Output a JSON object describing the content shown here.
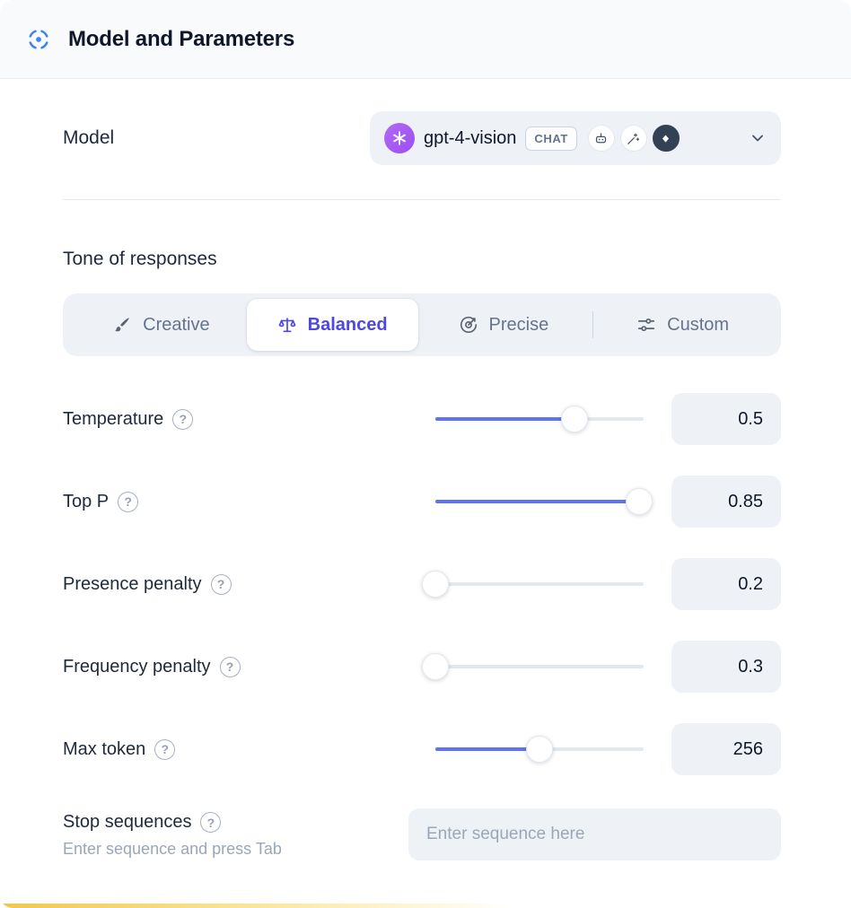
{
  "header": {
    "title": "Model and Parameters",
    "icon": "model-scan-icon"
  },
  "model": {
    "label": "Model",
    "selected_model": "gpt-4-vision",
    "type_badge": "CHAT",
    "capability_icons": [
      "openai-logo",
      "robot-icon",
      "wand-icon",
      "vision-icon"
    ]
  },
  "tone": {
    "heading": "Tone of responses",
    "options": [
      {
        "label": "Creative",
        "icon": "brush-icon",
        "selected": false
      },
      {
        "label": "Balanced",
        "icon": "scale-icon",
        "selected": true
      },
      {
        "label": "Precise",
        "icon": "target-icon",
        "selected": false
      },
      {
        "label": "Custom",
        "icon": "sliders-icon",
        "selected": false
      }
    ]
  },
  "params": [
    {
      "label": "Temperature",
      "value": "0.5",
      "percent": 67
    },
    {
      "label": "Top P",
      "value": "0.85",
      "percent": 98
    },
    {
      "label": "Presence penalty",
      "value": "0.2",
      "percent": 0
    },
    {
      "label": "Frequency penalty",
      "value": "0.3",
      "percent": 0
    },
    {
      "label": "Max token",
      "value": "256",
      "percent": 50
    }
  ],
  "stop": {
    "label": "Stop sequences",
    "hint": "Enter sequence and press Tab",
    "placeholder": "Enter sequence here"
  },
  "colors": {
    "accent": "#5d74f7",
    "selected_tone_text": "#4f46e5",
    "header_bg": "#f8fafc",
    "control_bg": "#eef2f6",
    "openai_purple": "#a05cf0"
  }
}
